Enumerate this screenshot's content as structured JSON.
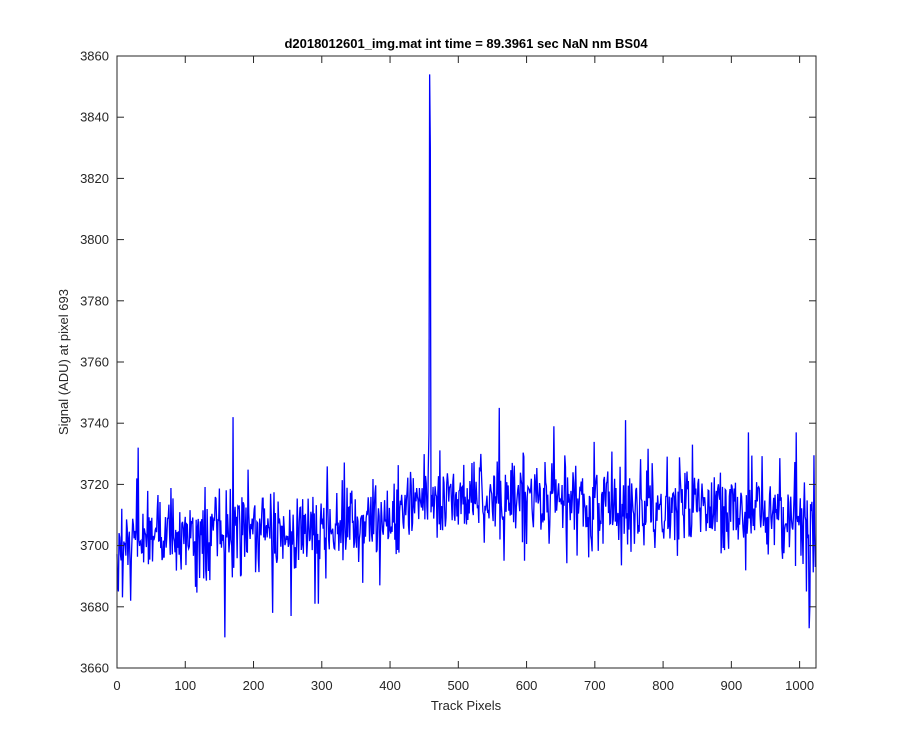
{
  "chart_data": {
    "type": "line",
    "title": "d2018012601_img.mat int time = 89.3961 sec  NaN nm BS04",
    "xlabel": "Track Pixels",
    "ylabel": "Signal (ADU) at pixel 693",
    "xlim": [
      0,
      1024
    ],
    "ylim": [
      3660,
      3860
    ],
    "xticks": [
      0,
      100,
      200,
      300,
      400,
      500,
      600,
      700,
      800,
      900,
      1000
    ],
    "yticks": [
      3660,
      3680,
      3700,
      3720,
      3740,
      3760,
      3780,
      3800,
      3820,
      3840,
      3860
    ],
    "grid": false,
    "line_color": "#0000ff",
    "series_profile": {
      "length": 1024,
      "baseline_segments": [
        {
          "x": [
            0,
            400
          ],
          "y": [
            3703,
            3708
          ]
        },
        {
          "x": [
            400,
            460
          ],
          "y": [
            3712,
            3716
          ]
        },
        {
          "x": [
            460,
            1023
          ],
          "y": [
            3716,
            3711
          ]
        }
      ],
      "noise_amplitude": 7,
      "features": [
        {
          "x": 458,
          "y": 3854
        },
        {
          "x": 459,
          "y": 3830
        },
        {
          "x": 457,
          "y": 3737
        },
        {
          "x": 170,
          "y": 3742
        },
        {
          "x": 158,
          "y": 3670
        },
        {
          "x": 560,
          "y": 3745
        },
        {
          "x": 1014,
          "y": 3673
        },
        {
          "x": 1015,
          "y": 3680
        },
        {
          "x": 1010,
          "y": 3685
        },
        {
          "x": 1023,
          "y": 3693
        },
        {
          "x": 2,
          "y": 3685
        },
        {
          "x": 31,
          "y": 3732
        },
        {
          "x": 20,
          "y": 3682
        },
        {
          "x": 228,
          "y": 3678
        },
        {
          "x": 255,
          "y": 3677
        },
        {
          "x": 290,
          "y": 3681
        },
        {
          "x": 295,
          "y": 3681
        },
        {
          "x": 385,
          "y": 3687
        },
        {
          "x": 745,
          "y": 3741
        },
        {
          "x": 843,
          "y": 3733
        },
        {
          "x": 925,
          "y": 3737
        },
        {
          "x": 995,
          "y": 3737
        },
        {
          "x": 640,
          "y": 3739
        },
        {
          "x": 1005,
          "y": 3694
        }
      ]
    }
  }
}
